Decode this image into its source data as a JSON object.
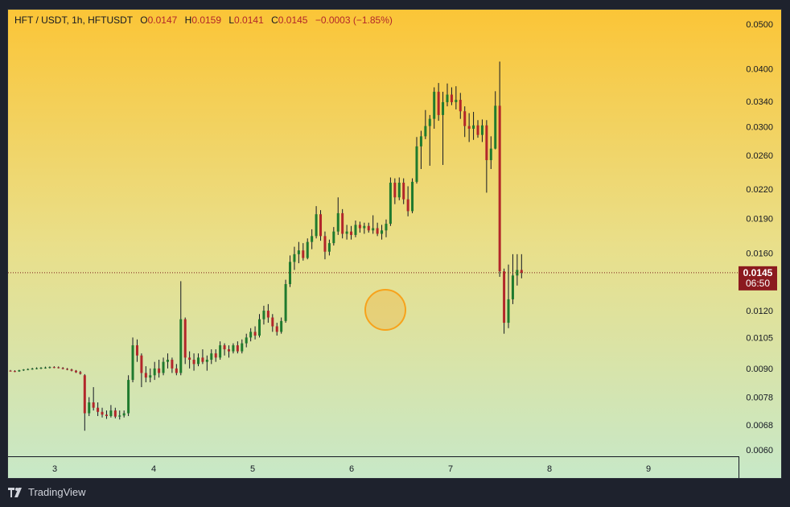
{
  "header": {
    "symbol": "HFT / USDT, 1h, HFTUSDT",
    "open_label": "O",
    "open": "0.0147",
    "high_label": "H",
    "high": "0.0159",
    "low_label": "L",
    "low": "0.0141",
    "close_label": "C",
    "close": "0.0145",
    "change": "−0.0003 (−1.85%)"
  },
  "price_tag": {
    "price": "0.0145",
    "countdown": "06:50"
  },
  "footer": {
    "brand": "TradingView"
  },
  "colors": {
    "up": "#1f7a2e",
    "down": "#b2262a",
    "tag_bg": "#8b1a1f",
    "marker": "#f7a21b"
  },
  "chart_data": {
    "type": "candlestick",
    "y_scale": "log",
    "y_ticks": [
      "0.0500",
      "0.0400",
      "0.0340",
      "0.0300",
      "0.0260",
      "0.0220",
      "0.0190",
      "0.0160",
      "0.0120",
      "0.0105",
      "0.0090",
      "0.0078",
      "0.0068",
      "0.0060"
    ],
    "x_ticks": [
      "3",
      "4",
      "5",
      "6",
      "7",
      "8",
      "9"
    ],
    "last_price": 0.0145,
    "candles": [
      [
        0.0089,
        0.00893,
        0.00886,
        0.00888
      ],
      [
        0.00888,
        0.00892,
        0.00884,
        0.00887
      ],
      [
        0.00887,
        0.00894,
        0.00885,
        0.00892
      ],
      [
        0.00892,
        0.00897,
        0.00889,
        0.00895
      ],
      [
        0.00895,
        0.009,
        0.00892,
        0.00897
      ],
      [
        0.00897,
        0.00903,
        0.00894,
        0.00899
      ],
      [
        0.00899,
        0.00905,
        0.00896,
        0.00901
      ],
      [
        0.00901,
        0.00906,
        0.00897,
        0.00903
      ],
      [
        0.00903,
        0.00908,
        0.00899,
        0.00904
      ],
      [
        0.00904,
        0.00909,
        0.009,
        0.00906
      ],
      [
        0.00906,
        0.0091,
        0.00901,
        0.00905
      ],
      [
        0.00905,
        0.00909,
        0.009,
        0.00902
      ],
      [
        0.00902,
        0.00906,
        0.00896,
        0.00898
      ],
      [
        0.00898,
        0.00902,
        0.00892,
        0.00895
      ],
      [
        0.00895,
        0.00899,
        0.00887,
        0.0089
      ],
      [
        0.0089,
        0.00893,
        0.0088,
        0.00883
      ],
      [
        0.00883,
        0.00889,
        0.00873,
        0.00877
      ],
      [
        0.0087,
        0.00875,
        0.0066,
        0.0072
      ],
      [
        0.0072,
        0.0078,
        0.0071,
        0.0076
      ],
      [
        0.0076,
        0.0082,
        0.0073,
        0.0074
      ],
      [
        0.0074,
        0.0076,
        0.0071,
        0.00725
      ],
      [
        0.00725,
        0.0074,
        0.00705,
        0.00715
      ],
      [
        0.00715,
        0.0073,
        0.007,
        0.0071
      ],
      [
        0.0071,
        0.0075,
        0.00705,
        0.0073
      ],
      [
        0.0073,
        0.0074,
        0.00702,
        0.00708
      ],
      [
        0.00708,
        0.0073,
        0.00698,
        0.00712
      ],
      [
        0.00712,
        0.0073,
        0.00705,
        0.0072
      ],
      [
        0.0072,
        0.0087,
        0.0071,
        0.0085
      ],
      [
        0.0085,
        0.0105,
        0.0084,
        0.0101
      ],
      [
        0.0101,
        0.0104,
        0.0093,
        0.0096
      ],
      [
        0.0096,
        0.0097,
        0.0082,
        0.0088
      ],
      [
        0.0088,
        0.0091,
        0.0084,
        0.0086
      ],
      [
        0.0086,
        0.009,
        0.0084,
        0.0087
      ],
      [
        0.0087,
        0.0093,
        0.0085,
        0.009
      ],
      [
        0.009,
        0.0094,
        0.0086,
        0.0088
      ],
      [
        0.0088,
        0.0095,
        0.0087,
        0.0093
      ],
      [
        0.0093,
        0.0097,
        0.009,
        0.0094
      ],
      [
        0.0094,
        0.0095,
        0.0088,
        0.009
      ],
      [
        0.009,
        0.0092,
        0.0087,
        0.0088
      ],
      [
        0.0088,
        0.0139,
        0.0087,
        0.0115
      ],
      [
        0.0115,
        0.0116,
        0.0092,
        0.0095
      ],
      [
        0.0095,
        0.0098,
        0.009,
        0.0094
      ],
      [
        0.0094,
        0.0097,
        0.0089,
        0.0092
      ],
      [
        0.0092,
        0.0097,
        0.0091,
        0.0095
      ],
      [
        0.0095,
        0.0099,
        0.0092,
        0.0093
      ],
      [
        0.0093,
        0.0096,
        0.0089,
        0.0094
      ],
      [
        0.0094,
        0.0099,
        0.0092,
        0.0097
      ],
      [
        0.0097,
        0.0099,
        0.0093,
        0.0095
      ],
      [
        0.0095,
        0.0103,
        0.0094,
        0.0101
      ],
      [
        0.0101,
        0.0102,
        0.0096,
        0.0099
      ],
      [
        0.0099,
        0.0101,
        0.0095,
        0.0098
      ],
      [
        0.0098,
        0.0102,
        0.0097,
        0.0101
      ],
      [
        0.0101,
        0.0103,
        0.0097,
        0.0098
      ],
      [
        0.0098,
        0.0104,
        0.0097,
        0.0102
      ],
      [
        0.0102,
        0.0107,
        0.01,
        0.0105
      ],
      [
        0.0105,
        0.011,
        0.0103,
        0.0108
      ],
      [
        0.0108,
        0.0111,
        0.0104,
        0.0106
      ],
      [
        0.0106,
        0.0118,
        0.0105,
        0.0115
      ],
      [
        0.0115,
        0.0123,
        0.0112,
        0.012
      ],
      [
        0.012,
        0.0124,
        0.0113,
        0.0116
      ],
      [
        0.0116,
        0.0118,
        0.0108,
        0.0111
      ],
      [
        0.0111,
        0.0113,
        0.0106,
        0.0108
      ],
      [
        0.0108,
        0.0116,
        0.0107,
        0.0114
      ],
      [
        0.0114,
        0.014,
        0.0113,
        0.0137
      ],
      [
        0.0137,
        0.0158,
        0.0135,
        0.0153
      ],
      [
        0.0153,
        0.0165,
        0.0147,
        0.0159
      ],
      [
        0.0159,
        0.0169,
        0.0152,
        0.0162
      ],
      [
        0.0162,
        0.0168,
        0.0154,
        0.0156
      ],
      [
        0.0156,
        0.0172,
        0.0155,
        0.0169
      ],
      [
        0.0169,
        0.018,
        0.0163,
        0.0174
      ],
      [
        0.0174,
        0.0202,
        0.0172,
        0.0194
      ],
      [
        0.0194,
        0.0198,
        0.017,
        0.0174
      ],
      [
        0.0174,
        0.0178,
        0.0155,
        0.0161
      ],
      [
        0.0161,
        0.0171,
        0.0158,
        0.0168
      ],
      [
        0.0168,
        0.0182,
        0.0166,
        0.0178
      ],
      [
        0.0178,
        0.0211,
        0.0175,
        0.0195
      ],
      [
        0.0195,
        0.0199,
        0.0172,
        0.0176
      ],
      [
        0.0176,
        0.0184,
        0.0171,
        0.0178
      ],
      [
        0.0178,
        0.0183,
        0.0171,
        0.0175
      ],
      [
        0.0175,
        0.0188,
        0.0173,
        0.0184
      ],
      [
        0.0184,
        0.0187,
        0.0177,
        0.0181
      ],
      [
        0.0181,
        0.0186,
        0.0176,
        0.0183
      ],
      [
        0.0183,
        0.0186,
        0.0177,
        0.0179
      ],
      [
        0.0179,
        0.0193,
        0.0176,
        0.0181
      ],
      [
        0.0181,
        0.0186,
        0.0174,
        0.0176
      ],
      [
        0.0176,
        0.0184,
        0.0171,
        0.0179
      ],
      [
        0.0179,
        0.0189,
        0.0173,
        0.0185
      ],
      [
        0.0185,
        0.0233,
        0.0183,
        0.0227
      ],
      [
        0.0227,
        0.0232,
        0.0204,
        0.0211
      ],
      [
        0.0211,
        0.0233,
        0.0208,
        0.0227
      ],
      [
        0.0227,
        0.0232,
        0.0204,
        0.0209
      ],
      [
        0.0209,
        0.0223,
        0.0192,
        0.0197
      ],
      [
        0.0197,
        0.0232,
        0.0195,
        0.0228
      ],
      [
        0.0228,
        0.0285,
        0.0226,
        0.0272
      ],
      [
        0.0272,
        0.0294,
        0.0243,
        0.0286
      ],
      [
        0.0286,
        0.0326,
        0.0282,
        0.0301
      ],
      [
        0.0301,
        0.0318,
        0.0247,
        0.0312
      ],
      [
        0.0312,
        0.0365,
        0.0297,
        0.0357
      ],
      [
        0.0357,
        0.0373,
        0.0309,
        0.0318
      ],
      [
        0.0318,
        0.0357,
        0.0248,
        0.0339
      ],
      [
        0.0339,
        0.0372,
        0.0332,
        0.0352
      ],
      [
        0.0352,
        0.0365,
        0.0334,
        0.0339
      ],
      [
        0.0339,
        0.0367,
        0.0327,
        0.0343
      ],
      [
        0.0343,
        0.0355,
        0.0312,
        0.0324
      ],
      [
        0.0324,
        0.0332,
        0.0285,
        0.0301
      ],
      [
        0.0301,
        0.0321,
        0.0278,
        0.0297
      ],
      [
        0.0297,
        0.0323,
        0.0281,
        0.0302
      ],
      [
        0.0302,
        0.031,
        0.0284,
        0.0288
      ],
      [
        0.0288,
        0.0311,
        0.0278,
        0.0302
      ],
      [
        0.0302,
        0.031,
        0.0216,
        0.0254
      ],
      [
        0.0254,
        0.0286,
        0.0243,
        0.0269
      ],
      [
        0.0269,
        0.0358,
        0.0268,
        0.0333
      ],
      [
        0.0333,
        0.0415,
        0.0142,
        0.0146
      ],
      [
        0.0146,
        0.0148,
        0.0107,
        0.0113
      ],
      [
        0.0113,
        0.0151,
        0.011,
        0.0127
      ],
      [
        0.0127,
        0.0159,
        0.0124,
        0.0143
      ],
      [
        0.0143,
        0.0159,
        0.0136,
        0.0147
      ],
      [
        0.0147,
        0.0159,
        0.0141,
        0.0145
      ]
    ]
  }
}
